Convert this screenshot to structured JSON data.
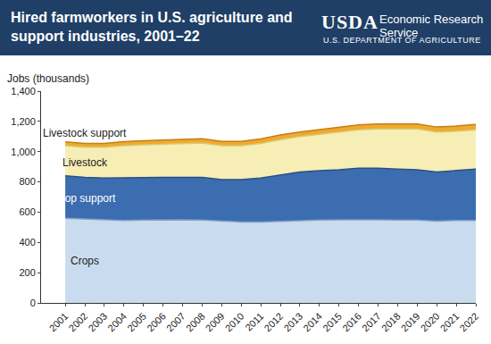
{
  "chart_data": {
    "type": "area",
    "stacked": true,
    "title": "Hired farmworkers in U.S. agriculture and support industries, 2001–22",
    "publisher": {
      "logo": "USDA",
      "name": "Economic Research Service",
      "department": "U.S. DEPARTMENT OF AGRICULTURE"
    },
    "y_label": "Jobs (thousands)",
    "categories": [
      "2001",
      "2002",
      "2003",
      "2004",
      "2005",
      "2006",
      "2007",
      "2008",
      "2009",
      "2010",
      "2011",
      "2012",
      "2013",
      "2014",
      "2015",
      "2016",
      "2017",
      "2018",
      "2019",
      "2020",
      "2021",
      "2022"
    ],
    "series": [
      {
        "name": "Crops",
        "color": "#c9dcef",
        "values": [
          560,
          555,
          550,
          545,
          548,
          550,
          550,
          548,
          540,
          535,
          535,
          540,
          545,
          548,
          550,
          552,
          550,
          548,
          548,
          540,
          545,
          545
        ]
      },
      {
        "name": "Crop support",
        "color": "#3c6db0",
        "values": [
          280,
          275,
          275,
          283,
          282,
          280,
          280,
          282,
          275,
          280,
          290,
          305,
          320,
          327,
          330,
          338,
          340,
          337,
          332,
          325,
          330,
          340
        ]
      },
      {
        "name": "Livestock",
        "color": "#f6eeb4",
        "values": [
          200,
          200,
          205,
          212,
          215,
          220,
          225,
          228,
          225,
          225,
          230,
          235,
          235,
          240,
          250,
          255,
          260,
          265,
          270,
          265,
          260,
          260
        ]
      },
      {
        "name": "Livestock support",
        "color": "#f0a830",
        "values": [
          25,
          25,
          25,
          26,
          27,
          28,
          28,
          28,
          28,
          28,
          29,
          30,
          30,
          31,
          32,
          32,
          33,
          33,
          33,
          33,
          34,
          35
        ]
      }
    ],
    "ylim": [
      0,
      1400
    ],
    "yticks": [
      0,
      200,
      400,
      600,
      800,
      {
        "value": 1000,
        "label": "1,000"
      },
      {
        "value": 1200,
        "label": "1,200"
      },
      {
        "value": 1400,
        "label": "1,400"
      }
    ],
    "grid": false
  }
}
